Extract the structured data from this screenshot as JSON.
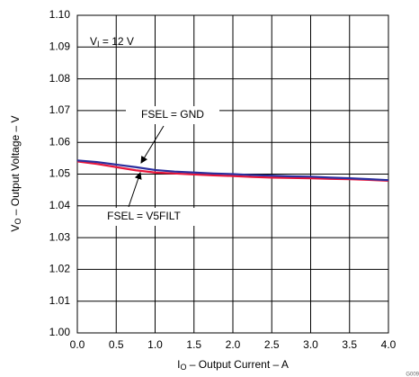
{
  "chart_data": {
    "type": "line",
    "x_label": {
      "main": "I",
      "sub": "O",
      "rest": " – Output Current – A"
    },
    "y_label": {
      "main": "V",
      "sub": "O",
      "rest": " – Output Voltage – V"
    },
    "annotations": {
      "condition": {
        "main": "V",
        "sub": "I",
        "rest": " = 12 V"
      },
      "gnd": "FSEL = GND",
      "v5filt": "FSEL = V5FILT",
      "figure_id": "G009"
    },
    "x": [
      0,
      0.25,
      0.5,
      0.75,
      1.0,
      1.25,
      1.5,
      1.75,
      2.0,
      2.25,
      2.5,
      2.75,
      3.0,
      3.25,
      3.5,
      3.75,
      4.0
    ],
    "series": [
      {
        "name": "FSEL = GND",
        "color": "#2b2f9e",
        "values": [
          1.0543,
          1.0538,
          1.053,
          1.0522,
          1.0513,
          1.0508,
          1.0505,
          1.0502,
          1.05,
          1.0497,
          1.0495,
          1.0493,
          1.0492,
          1.0489,
          1.0487,
          1.0484,
          1.0481
        ]
      },
      {
        "name": "FSEL = V5FILT",
        "color": "#e8173c",
        "values": [
          1.054,
          1.0532,
          1.0522,
          1.0512,
          1.0505,
          1.0502,
          1.0499,
          1.0496,
          1.0494,
          1.0491,
          1.0489,
          1.0488,
          1.0487,
          1.0485,
          1.0484,
          1.0482,
          1.0479
        ]
      }
    ],
    "xlim": [
      0,
      4
    ],
    "ylim": [
      1.0,
      1.1
    ],
    "xticks": [
      {
        "value": 0,
        "label": "0.0"
      },
      {
        "value": 0.5,
        "label": "0.5"
      },
      {
        "value": 1,
        "label": "1.0"
      },
      {
        "value": 1.5,
        "label": "1.5"
      },
      {
        "value": 2,
        "label": "2.0"
      },
      {
        "value": 2.5,
        "label": "2.5"
      },
      {
        "value": 3,
        "label": "3.0"
      },
      {
        "value": 3.5,
        "label": "3.5"
      },
      {
        "value": 4,
        "label": "4.0"
      }
    ],
    "yticks": [
      {
        "value": 1.0,
        "label": "1.00"
      },
      {
        "value": 1.01,
        "label": "1.01"
      },
      {
        "value": 1.02,
        "label": "1.02"
      },
      {
        "value": 1.03,
        "label": "1.03"
      },
      {
        "value": 1.04,
        "label": "1.04"
      },
      {
        "value": 1.05,
        "label": "1.05"
      },
      {
        "value": 1.06,
        "label": "1.06"
      },
      {
        "value": 1.07,
        "label": "1.07"
      },
      {
        "value": 1.08,
        "label": "1.08"
      },
      {
        "value": 1.09,
        "label": "1.09"
      },
      {
        "value": 1.1,
        "label": "1.10"
      }
    ],
    "grid": true
  }
}
